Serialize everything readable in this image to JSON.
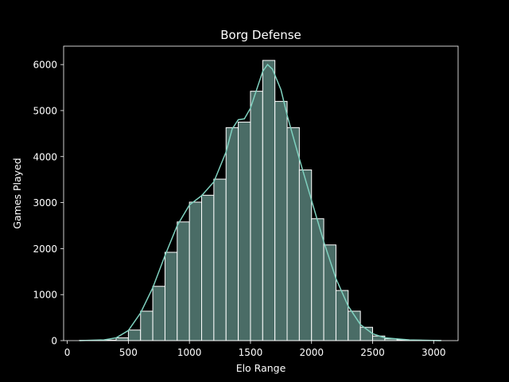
{
  "chart_data": {
    "type": "bar",
    "title": "Borg Defense",
    "xlabel": "Elo Range",
    "ylabel": "Games Played",
    "xlim": [
      -30,
      3200
    ],
    "ylim": [
      0,
      6400
    ],
    "xticks": [
      0,
      500,
      1000,
      1500,
      2000,
      2500,
      3000
    ],
    "yticks": [
      0,
      1000,
      2000,
      3000,
      4000,
      5000,
      6000
    ],
    "grid": false,
    "bar_color": "#4a6c66",
    "bar_edge_color": "#ffffff",
    "kde_color": "#7fd1bf",
    "bins": [
      {
        "x0": 100,
        "x1": 200,
        "value": 5
      },
      {
        "x0": 200,
        "x1": 300,
        "value": 8
      },
      {
        "x0": 300,
        "x1": 400,
        "value": 12
      },
      {
        "x0": 400,
        "x1": 500,
        "value": 60
      },
      {
        "x0": 500,
        "x1": 600,
        "value": 230
      },
      {
        "x0": 600,
        "x1": 700,
        "value": 640
      },
      {
        "x0": 700,
        "x1": 800,
        "value": 1180
      },
      {
        "x0": 800,
        "x1": 900,
        "value": 1920
      },
      {
        "x0": 900,
        "x1": 1000,
        "value": 2580
      },
      {
        "x0": 1000,
        "x1": 1100,
        "value": 3010
      },
      {
        "x0": 1100,
        "x1": 1200,
        "value": 3160
      },
      {
        "x0": 1200,
        "x1": 1300,
        "value": 3510
      },
      {
        "x0": 1300,
        "x1": 1400,
        "value": 4630
      },
      {
        "x0": 1400,
        "x1": 1500,
        "value": 4750
      },
      {
        "x0": 1500,
        "x1": 1600,
        "value": 5420
      },
      {
        "x0": 1600,
        "x1": 1700,
        "value": 6090
      },
      {
        "x0": 1700,
        "x1": 1800,
        "value": 5200
      },
      {
        "x0": 1800,
        "x1": 1900,
        "value": 4630
      },
      {
        "x0": 1900,
        "x1": 2000,
        "value": 3710
      },
      {
        "x0": 2000,
        "x1": 2100,
        "value": 2650
      },
      {
        "x0": 2100,
        "x1": 2200,
        "value": 2080
      },
      {
        "x0": 2200,
        "x1": 2300,
        "value": 1090
      },
      {
        "x0": 2300,
        "x1": 2400,
        "value": 640
      },
      {
        "x0": 2400,
        "x1": 2500,
        "value": 290
      },
      {
        "x0": 2500,
        "x1": 2600,
        "value": 100
      },
      {
        "x0": 2600,
        "x1": 2700,
        "value": 40
      },
      {
        "x0": 2700,
        "x1": 2800,
        "value": 18
      },
      {
        "x0": 2800,
        "x1": 2900,
        "value": 10
      },
      {
        "x0": 2900,
        "x1": 3000,
        "value": 6
      },
      {
        "x0": 3000,
        "x1": 3060,
        "value": 4
      }
    ],
    "kde": [
      [
        100,
        0
      ],
      [
        300,
        15
      ],
      [
        400,
        60
      ],
      [
        500,
        220
      ],
      [
        600,
        600
      ],
      [
        700,
        1150
      ],
      [
        800,
        1850
      ],
      [
        900,
        2500
      ],
      [
        1000,
        2950
      ],
      [
        1100,
        3150
      ],
      [
        1200,
        3450
      ],
      [
        1300,
        4100
      ],
      [
        1350,
        4600
      ],
      [
        1400,
        4800
      ],
      [
        1450,
        4820
      ],
      [
        1500,
        5050
      ],
      [
        1550,
        5450
      ],
      [
        1600,
        5850
      ],
      [
        1640,
        6000
      ],
      [
        1680,
        5900
      ],
      [
        1750,
        5450
      ],
      [
        1800,
        4900
      ],
      [
        1900,
        3950
      ],
      [
        2000,
        3050
      ],
      [
        2100,
        2150
      ],
      [
        2200,
        1350
      ],
      [
        2300,
        750
      ],
      [
        2400,
        350
      ],
      [
        2500,
        150
      ],
      [
        2600,
        60
      ],
      [
        2800,
        15
      ],
      [
        3060,
        0
      ]
    ]
  }
}
